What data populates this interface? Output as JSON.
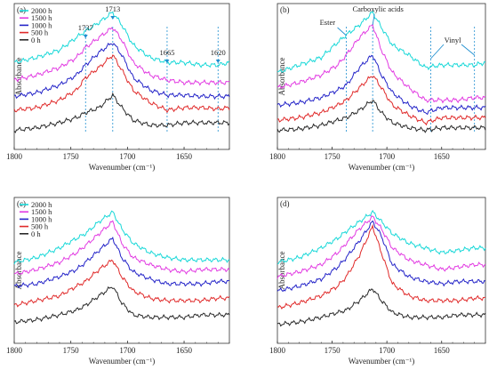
{
  "colors": {
    "2000 h": "#18d8d8",
    "1500 h": "#e23be2",
    "1000 h": "#2424c8",
    "500 h": "#e02a2a",
    "0 h": "#2a2a2a",
    "marker": "#1f8fd0"
  },
  "chart_data": [
    {
      "type": "line",
      "panel_label": "(a)",
      "xlabel": "Wavenumber (cm⁻¹)",
      "ylabel": "Absorbance",
      "xlim": [
        1800,
        1610
      ],
      "x_reversed": true,
      "xticks": [
        1800,
        1750,
        1700,
        1650
      ],
      "yticks": [],
      "legend": {
        "position": "top-left",
        "entries": [
          "2000 h",
          "1500 h",
          "1000 h",
          "500 h",
          "0 h"
        ]
      },
      "series": [
        {
          "name": "2000 h",
          "x": [
            1800,
            1780,
            1760,
            1745,
            1737,
            1725,
            1713,
            1705,
            1695,
            1680,
            1665,
            1650,
            1635,
            1620,
            1610
          ],
          "y": [
            0.6,
            0.64,
            0.7,
            0.8,
            0.85,
            0.92,
            1.0,
            0.9,
            0.74,
            0.64,
            0.6,
            0.6,
            0.58,
            0.58,
            0.6
          ]
        },
        {
          "name": "1500 h",
          "x": [
            1800,
            1780,
            1760,
            1745,
            1737,
            1725,
            1713,
            1705,
            1695,
            1680,
            1665,
            1650,
            1635,
            1620,
            1610
          ],
          "y": [
            0.46,
            0.5,
            0.56,
            0.64,
            0.72,
            0.8,
            0.88,
            0.78,
            0.6,
            0.5,
            0.46,
            0.44,
            0.44,
            0.44,
            0.44
          ]
        },
        {
          "name": "1000 h",
          "x": [
            1800,
            1780,
            1760,
            1745,
            1737,
            1725,
            1713,
            1705,
            1695,
            1680,
            1665,
            1650,
            1635,
            1620,
            1610
          ],
          "y": [
            0.33,
            0.36,
            0.42,
            0.5,
            0.58,
            0.68,
            0.76,
            0.66,
            0.48,
            0.38,
            0.34,
            0.34,
            0.33,
            0.33,
            0.33
          ]
        },
        {
          "name": "500 h",
          "x": [
            1800,
            1780,
            1760,
            1745,
            1737,
            1725,
            1713,
            1705,
            1695,
            1680,
            1665,
            1650,
            1635,
            1620,
            1610
          ],
          "y": [
            0.22,
            0.24,
            0.3,
            0.38,
            0.48,
            0.56,
            0.66,
            0.54,
            0.38,
            0.28,
            0.22,
            0.24,
            0.24,
            0.23,
            0.24
          ]
        },
        {
          "name": "0 h",
          "x": [
            1800,
            1780,
            1760,
            1745,
            1737,
            1725,
            1713,
            1705,
            1695,
            1680,
            1665,
            1650,
            1635,
            1620,
            1610
          ],
          "y": [
            0.06,
            0.08,
            0.12,
            0.16,
            0.2,
            0.24,
            0.34,
            0.24,
            0.14,
            0.1,
            0.1,
            0.12,
            0.12,
            0.12,
            0.12
          ]
        }
      ],
      "annotations": [
        {
          "x": 1737,
          "text": "1737"
        },
        {
          "x": 1713,
          "text": "1713"
        },
        {
          "x": 1665,
          "text": "1665"
        },
        {
          "x": 1620,
          "text": "1620"
        }
      ]
    },
    {
      "type": "line",
      "panel_label": "(b)",
      "xlabel": "Wavenumber (cm⁻¹)",
      "ylabel": "Absorbance",
      "xlim": [
        1800,
        1610
      ],
      "x_reversed": true,
      "xticks": [
        1800,
        1750,
        1700,
        1650
      ],
      "yticks": [],
      "series": [
        {
          "name": "2000 h",
          "x": [
            1800,
            1780,
            1760,
            1745,
            1737,
            1725,
            1713,
            1705,
            1695,
            1680,
            1665,
            1650,
            1635,
            1620,
            1610
          ],
          "y": [
            0.52,
            0.58,
            0.64,
            0.76,
            0.82,
            0.9,
            1.0,
            0.88,
            0.74,
            0.66,
            0.56,
            0.58,
            0.58,
            0.58,
            0.6
          ]
        },
        {
          "name": "1500 h",
          "x": [
            1800,
            1780,
            1760,
            1745,
            1737,
            1725,
            1713,
            1705,
            1695,
            1680,
            1665,
            1650,
            1635,
            1620,
            1610
          ],
          "y": [
            0.4,
            0.44,
            0.5,
            0.58,
            0.66,
            0.8,
            0.9,
            0.7,
            0.52,
            0.4,
            0.3,
            0.3,
            0.3,
            0.32,
            0.32
          ]
        },
        {
          "name": "1000 h",
          "x": [
            1800,
            1780,
            1760,
            1745,
            1737,
            1725,
            1713,
            1705,
            1695,
            1680,
            1665,
            1650,
            1635,
            1620,
            1610
          ],
          "y": [
            0.26,
            0.28,
            0.32,
            0.38,
            0.42,
            0.56,
            0.66,
            0.5,
            0.36,
            0.26,
            0.2,
            0.24,
            0.24,
            0.24,
            0.24
          ]
        },
        {
          "name": "500 h",
          "x": [
            1800,
            1780,
            1760,
            1745,
            1737,
            1725,
            1713,
            1705,
            1695,
            1680,
            1665,
            1650,
            1635,
            1620,
            1610
          ],
          "y": [
            0.14,
            0.16,
            0.2,
            0.26,
            0.3,
            0.4,
            0.5,
            0.4,
            0.26,
            0.18,
            0.12,
            0.16,
            0.16,
            0.16,
            0.16
          ]
        },
        {
          "name": "0 h",
          "x": [
            1800,
            1780,
            1760,
            1745,
            1737,
            1725,
            1713,
            1705,
            1695,
            1680,
            1665,
            1650,
            1635,
            1620,
            1610
          ],
          "y": [
            0.06,
            0.07,
            0.1,
            0.14,
            0.16,
            0.22,
            0.3,
            0.2,
            0.12,
            0.08,
            0.06,
            0.08,
            0.08,
            0.08,
            0.08
          ]
        }
      ],
      "annotations": [
        {
          "text": "Ester",
          "target_x": 1737
        },
        {
          "text": "Carboxylic acids",
          "target_x": 1713
        },
        {
          "text": "Vinyl",
          "target_x": 1660,
          "target_x2": 1620
        }
      ]
    },
    {
      "type": "line",
      "panel_label": "(c)",
      "xlabel": "Wavenumber (cm⁻¹)",
      "ylabel": "Absorbance",
      "xlim": [
        1800,
        1610
      ],
      "x_reversed": true,
      "xticks": [
        1800,
        1750,
        1700,
        1650
      ],
      "yticks": [],
      "legend": {
        "position": "top-left",
        "entries": [
          "2000 h",
          "1500 h",
          "1000 h",
          "500 h",
          "0 h"
        ]
      },
      "series": [
        {
          "name": "2000 h",
          "x": [
            1800,
            1780,
            1760,
            1745,
            1737,
            1725,
            1713,
            1705,
            1695,
            1680,
            1665,
            1650,
            1635,
            1620,
            1610
          ],
          "y": [
            0.58,
            0.62,
            0.7,
            0.78,
            0.82,
            0.92,
            1.0,
            0.86,
            0.74,
            0.66,
            0.62,
            0.6,
            0.6,
            0.6,
            0.6
          ]
        },
        {
          "name": "1500 h",
          "x": [
            1800,
            1780,
            1760,
            1745,
            1737,
            1725,
            1713,
            1705,
            1695,
            1680,
            1665,
            1650,
            1635,
            1620,
            1610
          ],
          "y": [
            0.48,
            0.52,
            0.58,
            0.66,
            0.72,
            0.82,
            0.92,
            0.74,
            0.62,
            0.56,
            0.52,
            0.5,
            0.52,
            0.52,
            0.52
          ]
        },
        {
          "name": "1000 h",
          "x": [
            1800,
            1780,
            1760,
            1745,
            1737,
            1725,
            1713,
            1705,
            1695,
            1680,
            1665,
            1650,
            1635,
            1620,
            1610
          ],
          "y": [
            0.38,
            0.4,
            0.46,
            0.52,
            0.58,
            0.68,
            0.78,
            0.62,
            0.5,
            0.44,
            0.4,
            0.4,
            0.4,
            0.42,
            0.42
          ]
        },
        {
          "name": "500 h",
          "x": [
            1800,
            1780,
            1760,
            1745,
            1737,
            1725,
            1713,
            1705,
            1695,
            1680,
            1665,
            1650,
            1635,
            1620,
            1610
          ],
          "y": [
            0.22,
            0.26,
            0.3,
            0.38,
            0.42,
            0.52,
            0.6,
            0.46,
            0.34,
            0.28,
            0.26,
            0.26,
            0.26,
            0.28,
            0.28
          ]
        },
        {
          "name": "0 h",
          "x": [
            1800,
            1780,
            1760,
            1745,
            1737,
            1725,
            1713,
            1705,
            1695,
            1680,
            1665,
            1650,
            1635,
            1620,
            1610
          ],
          "y": [
            0.08,
            0.1,
            0.14,
            0.18,
            0.22,
            0.3,
            0.38,
            0.24,
            0.14,
            0.12,
            0.12,
            0.12,
            0.14,
            0.14,
            0.14
          ]
        }
      ]
    },
    {
      "type": "line",
      "panel_label": "(d)",
      "xlabel": "Wavenumber (cm⁻¹)",
      "ylabel": "Absorbance",
      "xlim": [
        1800,
        1610
      ],
      "x_reversed": true,
      "xticks": [
        1800,
        1750,
        1700,
        1650
      ],
      "yticks": [],
      "series": [
        {
          "name": "2000 h",
          "x": [
            1800,
            1780,
            1760,
            1745,
            1737,
            1725,
            1713,
            1705,
            1695,
            1680,
            1665,
            1650,
            1635,
            1620,
            1610
          ],
          "y": [
            0.58,
            0.62,
            0.7,
            0.78,
            0.84,
            0.92,
            1.0,
            0.92,
            0.82,
            0.74,
            0.7,
            0.66,
            0.68,
            0.7,
            0.7
          ]
        },
        {
          "name": "1500 h",
          "x": [
            1800,
            1780,
            1760,
            1745,
            1737,
            1725,
            1713,
            1705,
            1695,
            1680,
            1665,
            1650,
            1635,
            1620,
            1610
          ],
          "y": [
            0.46,
            0.5,
            0.56,
            0.66,
            0.74,
            0.86,
            0.96,
            0.86,
            0.7,
            0.6,
            0.56,
            0.52,
            0.54,
            0.56,
            0.56
          ]
        },
        {
          "name": "1000 h",
          "x": [
            1800,
            1780,
            1760,
            1745,
            1737,
            1725,
            1713,
            1705,
            1695,
            1680,
            1665,
            1650,
            1635,
            1620,
            1610
          ],
          "y": [
            0.34,
            0.38,
            0.44,
            0.54,
            0.62,
            0.76,
            0.92,
            0.8,
            0.56,
            0.46,
            0.42,
            0.4,
            0.42,
            0.42,
            0.42
          ]
        },
        {
          "name": "500 h",
          "x": [
            1800,
            1780,
            1760,
            1745,
            1737,
            1725,
            1713,
            1705,
            1695,
            1680,
            1665,
            1650,
            1635,
            1620,
            1610
          ],
          "y": [
            0.2,
            0.24,
            0.3,
            0.38,
            0.46,
            0.64,
            0.88,
            0.66,
            0.4,
            0.3,
            0.26,
            0.26,
            0.26,
            0.28,
            0.28
          ]
        },
        {
          "name": "0 h",
          "x": [
            1800,
            1780,
            1760,
            1745,
            1737,
            1725,
            1713,
            1705,
            1695,
            1680,
            1665,
            1650,
            1635,
            1620,
            1610
          ],
          "y": [
            0.06,
            0.08,
            0.12,
            0.16,
            0.18,
            0.26,
            0.36,
            0.26,
            0.16,
            0.12,
            0.12,
            0.12,
            0.14,
            0.14,
            0.14
          ]
        }
      ]
    }
  ]
}
